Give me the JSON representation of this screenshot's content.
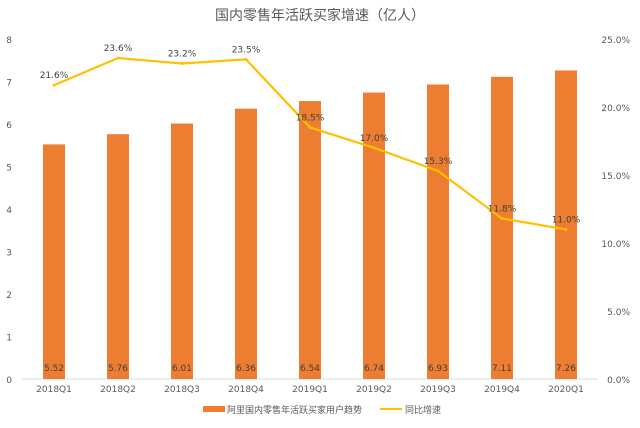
{
  "chart_data": {
    "type": "bar+line",
    "title": "国内零售年活跃买家增速（亿人）",
    "categories": [
      "2018Q1",
      "2018Q2",
      "2018Q3",
      "2018Q4",
      "2019Q1",
      "2019Q2",
      "2019Q3",
      "2019Q4",
      "2020Q1"
    ],
    "series": [
      {
        "name": "阿里国内零售年活跃买家用户趋势",
        "type": "bar",
        "axis": "left",
        "color": "#ED7D31",
        "values": [
          5.52,
          5.76,
          6.01,
          6.36,
          6.54,
          6.74,
          6.93,
          7.11,
          7.26
        ]
      },
      {
        "name": "同比增速",
        "type": "line",
        "axis": "right",
        "color": "#FFC000",
        "values": [
          21.6,
          23.6,
          23.2,
          23.5,
          18.5,
          17.0,
          15.3,
          11.8,
          11.0
        ]
      }
    ],
    "left_axis": {
      "ylim": [
        0,
        8
      ],
      "ticks": [
        "0",
        "1",
        "2",
        "3",
        "4",
        "5",
        "6",
        "7",
        "8"
      ]
    },
    "right_axis": {
      "ylim": [
        0,
        25
      ],
      "ticks": [
        "0.0%",
        "5.0%",
        "10.0%",
        "15.0%",
        "20.0%",
        "25.0%"
      ]
    },
    "bar_labels": [
      "5.52",
      "5.76",
      "6.01",
      "6.36",
      "6.54",
      "6.74",
      "6.93",
      "7.11",
      "7.26"
    ],
    "line_labels": [
      "21.6%",
      "23.6%",
      "23.2%",
      "23.5%",
      "18.5%",
      "17.0%",
      "15.3%",
      "11.8%",
      "11.0%"
    ],
    "grid": false,
    "legend": "bottom"
  }
}
